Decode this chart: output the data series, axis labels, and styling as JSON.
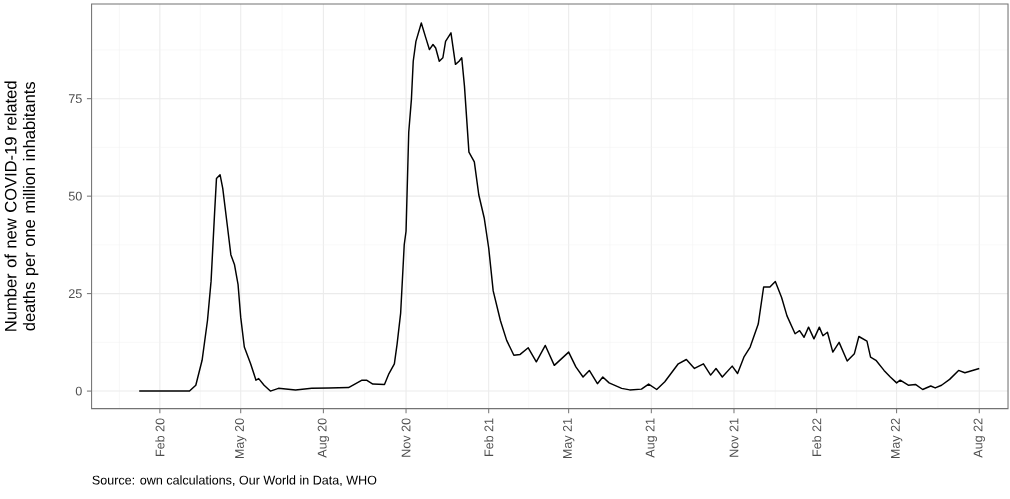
{
  "chart_data": {
    "type": "line",
    "ylabel": "Number of new COVID-19 related deaths per one million inhabitants",
    "annotations": [
      "Source: own calculations, Our World in Data, WHO"
    ],
    "color": "#000000",
    "x": [
      "2020-01-09",
      "2020-03-05",
      "2020-03-12",
      "2020-03-19",
      "2020-03-25",
      "2020-03-29",
      "2020-04-02",
      "2020-04-04",
      "2020-04-08",
      "2020-04-11",
      "2020-04-16",
      "2020-04-20",
      "2020-04-24",
      "2020-04-28",
      "2020-05-01",
      "2020-05-05",
      "2020-05-12",
      "2020-05-18",
      "2020-05-21",
      "2020-05-27",
      "2020-06-03",
      "2020-06-12",
      "2020-07-01",
      "2020-07-19",
      "2020-08-07",
      "2020-08-29",
      "2020-09-13",
      "2020-09-18",
      "2020-09-25",
      "2020-10-08",
      "2020-10-13",
      "2020-10-19",
      "2020-10-22",
      "2020-10-26",
      "2020-10-30",
      "2020-11-01",
      "2020-11-04",
      "2020-11-07",
      "2020-11-09",
      "2020-11-12",
      "2020-11-18",
      "2020-11-23",
      "2020-11-27",
      "2020-12-01",
      "2020-12-04",
      "2020-12-08",
      "2020-12-12",
      "2020-12-15",
      "2020-12-21",
      "2020-12-26",
      "2020-12-30",
      "2021-01-02",
      "2021-01-05",
      "2021-01-10",
      "2021-01-16",
      "2021-01-21",
      "2021-01-27",
      "2021-02-01",
      "2021-02-06",
      "2021-02-14",
      "2021-02-21",
      "2021-03-01",
      "2021-03-08",
      "2021-03-17",
      "2021-03-26",
      "2021-04-05",
      "2021-04-15",
      "2021-05-01",
      "2021-05-09",
      "2021-05-17",
      "2021-05-24",
      "2021-06-02",
      "2021-06-08",
      "2021-06-15",
      "2021-06-29",
      "2021-07-08",
      "2021-07-21",
      "2021-07-29",
      "2021-08-07",
      "2021-08-16",
      "2021-08-31",
      "2021-09-09",
      "2021-09-18",
      "2021-09-28",
      "2021-10-06",
      "2021-10-12",
      "2021-10-19",
      "2021-10-30",
      "2021-11-05",
      "2021-11-12",
      "2021-11-19",
      "2021-11-28",
      "2021-12-04",
      "2021-12-11",
      "2021-12-17",
      "2021-12-24",
      "2021-12-30",
      "2022-01-08",
      "2022-01-13",
      "2022-01-18",
      "2022-01-23",
      "2022-01-29",
      "2022-02-04",
      "2022-02-08",
      "2022-02-13",
      "2022-02-19",
      "2022-02-26",
      "2022-03-07",
      "2022-03-15",
      "2022-03-20",
      "2022-03-29",
      "2022-04-02",
      "2022-04-08",
      "2022-04-17",
      "2022-04-24",
      "2022-05-01",
      "2022-05-05",
      "2022-05-14",
      "2022-05-22",
      "2022-05-30",
      "2022-06-08",
      "2022-06-13",
      "2022-06-20",
      "2022-06-29",
      "2022-07-09",
      "2022-07-16",
      "2022-08-01"
    ],
    "values": [
      0,
      0,
      1.5,
      7.9,
      18.1,
      28.2,
      46.1,
      54.5,
      55.5,
      52,
      42.6,
      35,
      32.5,
      27.4,
      18.9,
      11.3,
      7,
      2.8,
      3.2,
      1.5,
      0,
      0.7,
      0.3,
      0.7,
      0.8,
      0.9,
      2.8,
      2.8,
      1.8,
      1.7,
      4.5,
      7,
      12,
      20,
      37.6,
      41,
      66.4,
      74.9,
      84.6,
      89.7,
      94.4,
      90.6,
      87.6,
      88.9,
      88,
      84.6,
      85.5,
      89.7,
      91.9,
      83.8,
      84.6,
      85.5,
      78.3,
      61.3,
      58.8,
      50.3,
      44.4,
      36.7,
      25.7,
      18.1,
      13,
      9.2,
      9.4,
      11.1,
      7.5,
      11.7,
      6.6,
      10,
      6.2,
      3.6,
      5.3,
      1.9,
      3.6,
      2.1,
      0.7,
      0.3,
      0.5,
      1.8,
      0.4,
      2.4,
      7,
      8.1,
      5.8,
      7,
      4.1,
      5.8,
      3.6,
      6.4,
      4.5,
      8.7,
      11.3,
      17.2,
      26.7,
      26.7,
      28.1,
      24,
      19.3,
      14.7,
      15.5,
      13.8,
      16.4,
      13.4,
      16.4,
      14.2,
      15.1,
      10,
      12.5,
      7.7,
      9.6,
      14,
      12.8,
      8.7,
      7.9,
      5.3,
      3.6,
      2.1,
      2.8,
      1.5,
      1.7,
      0.4,
      1.3,
      0.8,
      1.5,
      3,
      5.3,
      4.7,
      5.8
    ],
    "xlim": [
      "2019-11-17",
      "2022-09-02"
    ],
    "xticks": [
      {
        "value": "2020-02-01",
        "label": "Feb 20"
      },
      {
        "value": "2020-05-01",
        "label": "May 20"
      },
      {
        "value": "2020-08-01",
        "label": "Aug 20"
      },
      {
        "value": "2020-11-01",
        "label": "Nov 20"
      },
      {
        "value": "2021-02-01",
        "label": "Feb 21"
      },
      {
        "value": "2021-05-01",
        "label": "May 21"
      },
      {
        "value": "2021-08-01",
        "label": "Aug 21"
      },
      {
        "value": "2021-11-01",
        "label": "Nov 21"
      },
      {
        "value": "2022-02-01",
        "label": "Feb 22"
      },
      {
        "value": "2022-05-01",
        "label": "May 22"
      },
      {
        "value": "2022-08-01",
        "label": "Aug 22"
      }
    ],
    "ylim": [
      -4.5,
      99.3
    ],
    "yticks": [
      0,
      25,
      50,
      75
    ],
    "grid": true
  }
}
